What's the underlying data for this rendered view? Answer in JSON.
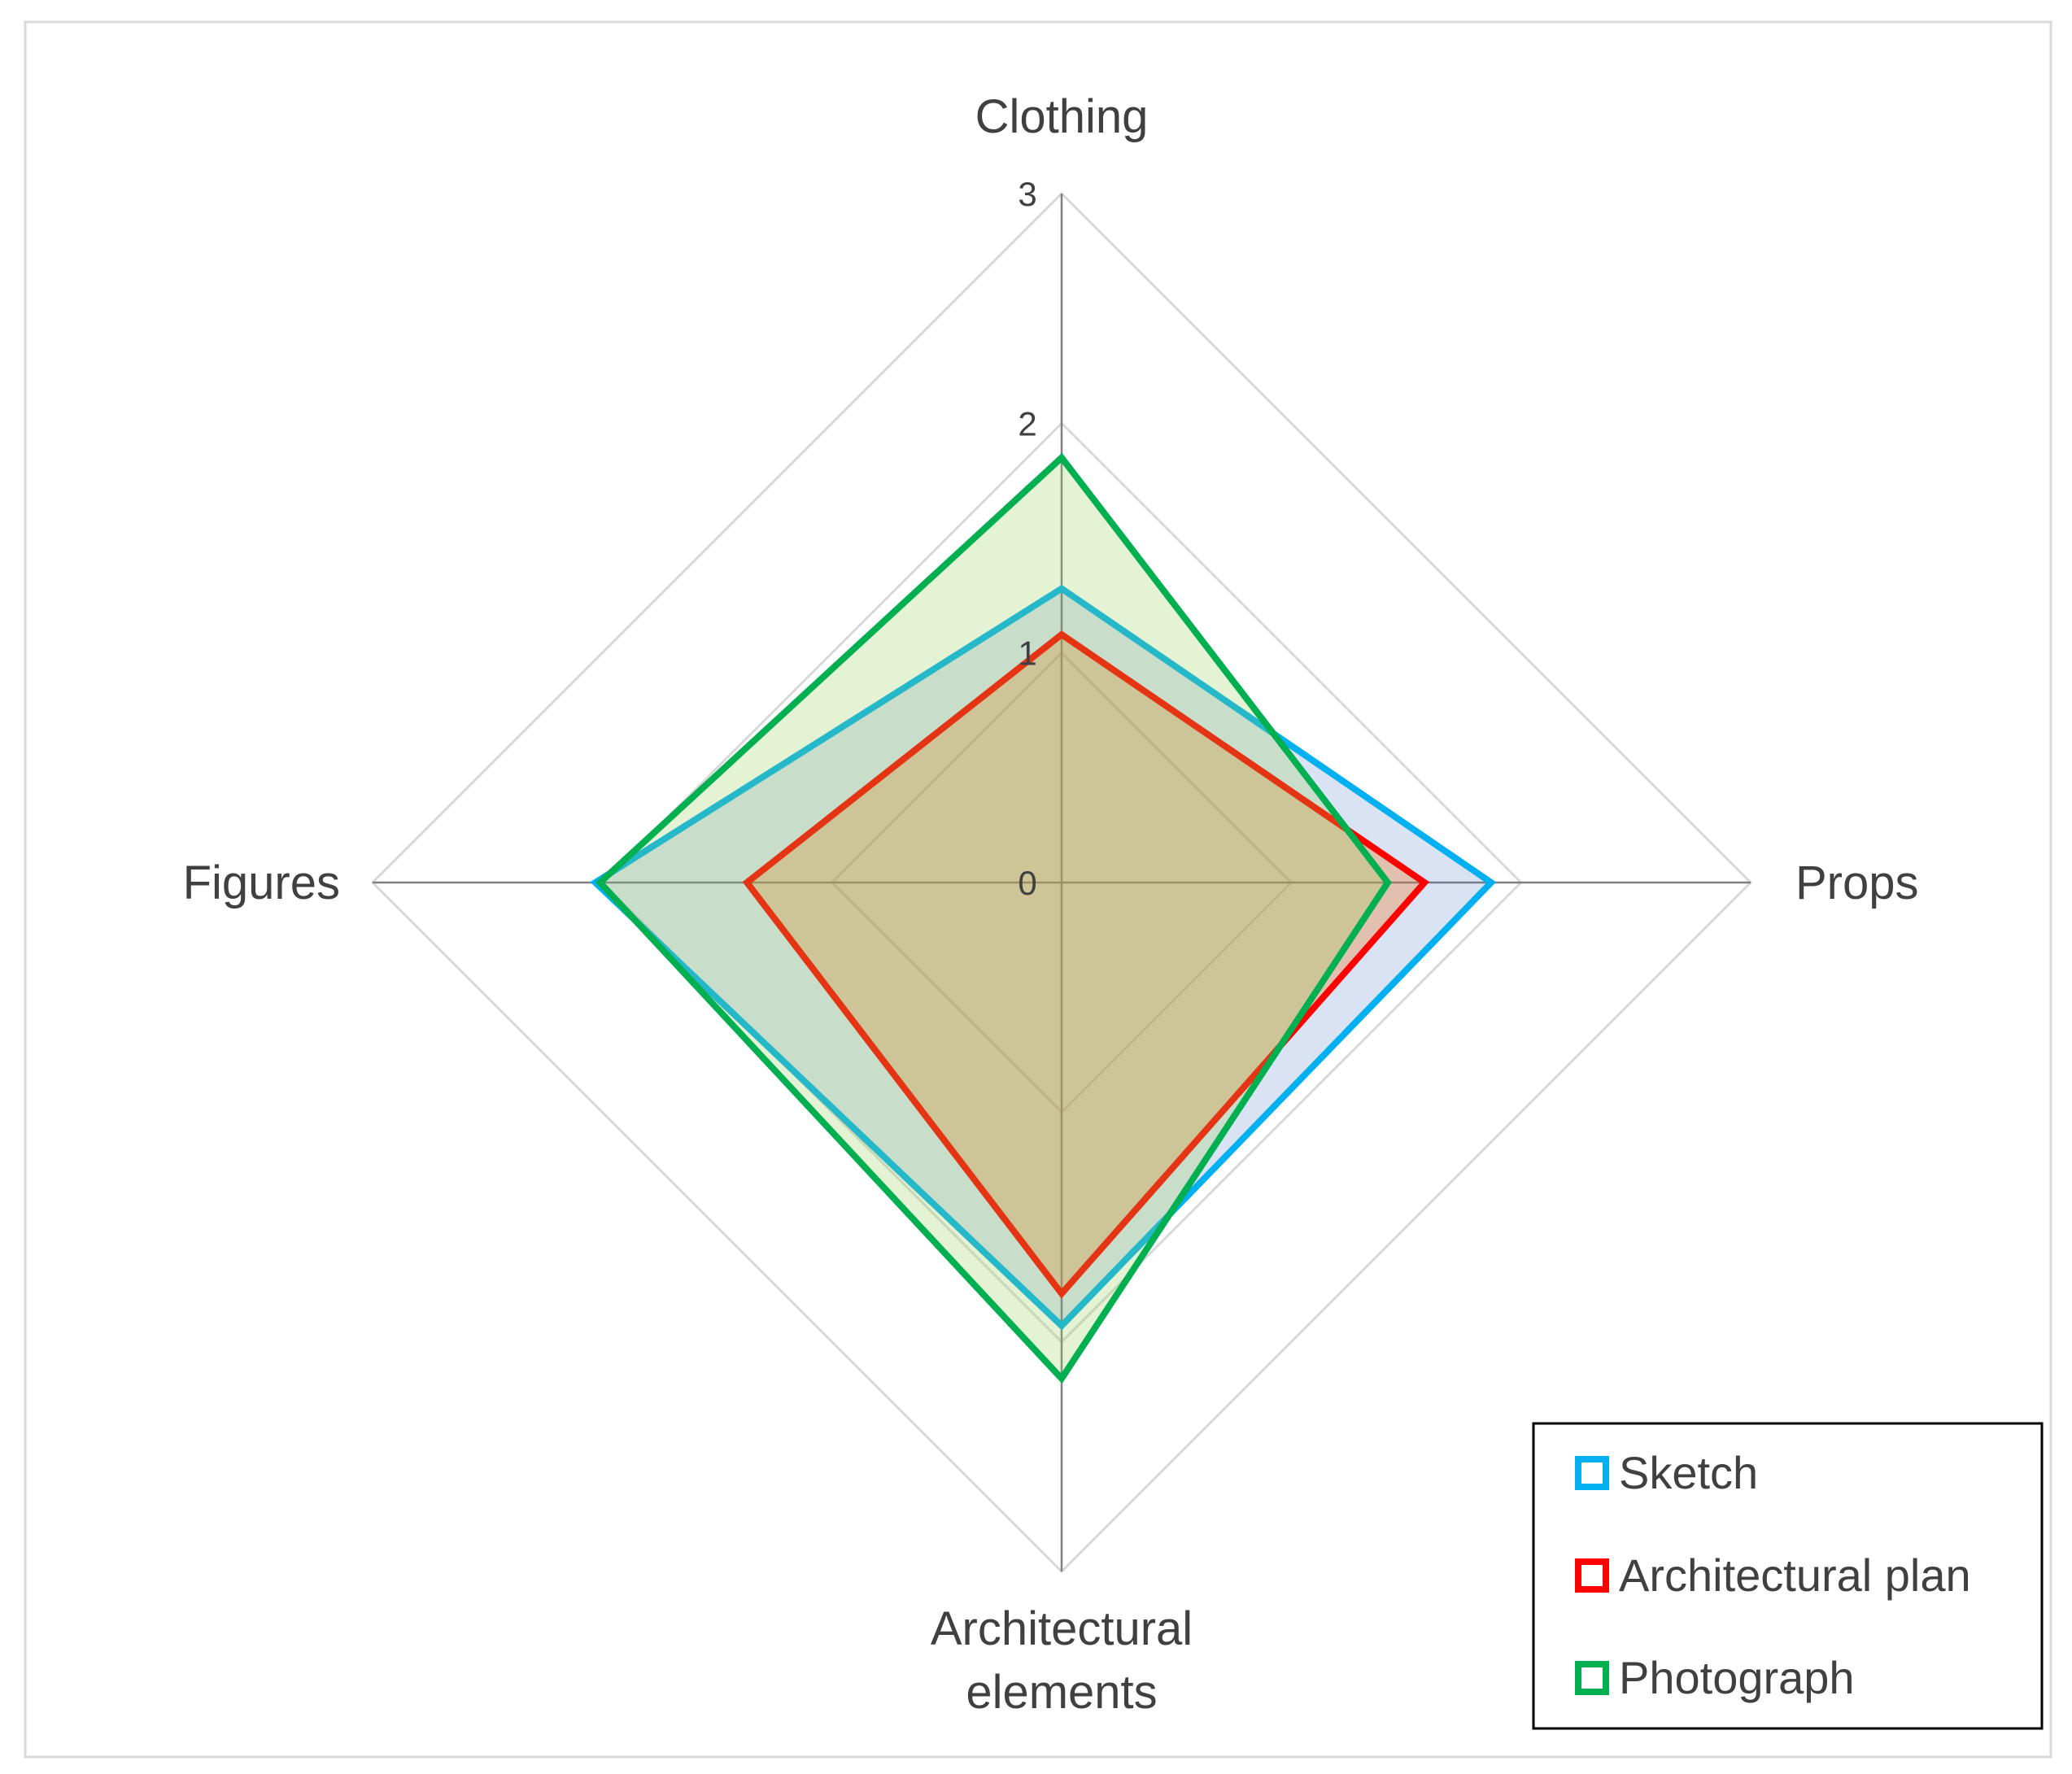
{
  "chart_data": {
    "type": "radar",
    "categories": [
      "Clothing",
      "Props",
      "Architectural elements",
      "Figures"
    ],
    "category_lines": {
      "Clothing": [
        "Clothing"
      ],
      "Props": [
        "Props"
      ],
      "Architectural elements": [
        "Architectural",
        "elements"
      ],
      "Figures": [
        "Figures"
      ]
    },
    "rlim": [
      0,
      3
    ],
    "ticks": [
      "0",
      "1",
      "2",
      "3"
    ],
    "grid": true,
    "legend_position": "bottom-right",
    "series": [
      {
        "name": "Sketch",
        "color": "#00B0F0",
        "fill": "rgba(68,114,196,0.20)",
        "values": [
          1.28,
          1.87,
          1.93,
          2.03
        ]
      },
      {
        "name": "Architectural plan",
        "color": "#FF0000",
        "fill": "rgba(237,125,49,0.35)",
        "values": [
          1.08,
          1.58,
          1.79,
          1.37
        ]
      },
      {
        "name": "Photograph",
        "color": "#00B050",
        "fill": "rgba(146,208,80,0.25)",
        "values": [
          1.85,
          1.42,
          2.16,
          2.01
        ]
      }
    ]
  }
}
